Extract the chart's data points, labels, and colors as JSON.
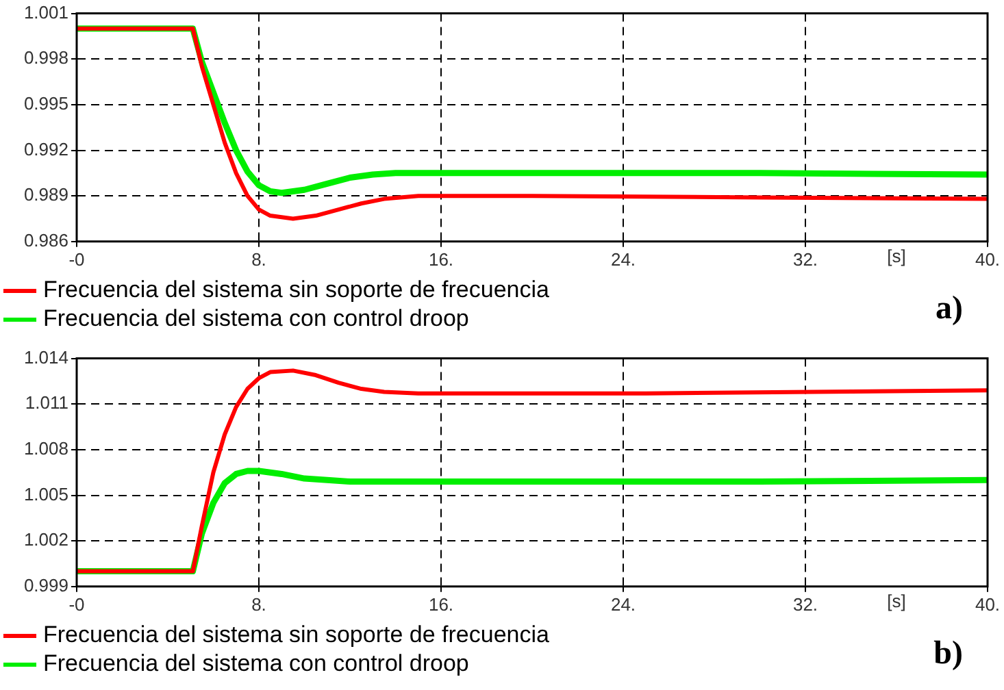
{
  "chart_data": [
    {
      "type": "line",
      "annotations": [
        "a)"
      ],
      "legend": "bottom",
      "grid": true,
      "marker": "none",
      "line_style": "solid",
      "xlabel": "[s]",
      "xlim": [
        0,
        40
      ],
      "xticks": [
        {
          "value": 0,
          "label": "-0"
        },
        {
          "value": 8,
          "label": "8."
        },
        {
          "value": 16,
          "label": "16."
        },
        {
          "value": 24,
          "label": "24."
        },
        {
          "value": 32,
          "label": "32."
        },
        {
          "value": 40,
          "label": "40."
        }
      ],
      "ylim": [
        0.986,
        1.001
      ],
      "yticks": [
        0.986,
        0.989,
        0.992,
        0.995,
        0.998,
        1.001
      ],
      "series": [
        {
          "name": "Frecuencia del sistema sin soporte de frecuencia",
          "color": "#ff0000",
          "x": [
            0,
            5.1,
            5.5,
            6,
            6.5,
            7,
            7.5,
            8,
            8.5,
            9.5,
            10.5,
            11.5,
            12.5,
            13.5,
            15,
            20,
            30,
            40
          ],
          "values": [
            1.0,
            1.0,
            0.9975,
            0.995,
            0.9925,
            0.9905,
            0.989,
            0.9881,
            0.9877,
            0.9875,
            0.9877,
            0.9881,
            0.9885,
            0.9888,
            0.989,
            0.989,
            0.9889,
            0.9888
          ]
        },
        {
          "name": "Frecuencia del sistema con control droop",
          "color": "#00ee00",
          "x": [
            0,
            5.1,
            5.5,
            6,
            6.5,
            7,
            7.5,
            8,
            8.5,
            9,
            10,
            11,
            12,
            13,
            14,
            20,
            30,
            40
          ],
          "values": [
            1.0,
            1.0,
            0.9978,
            0.9958,
            0.9938,
            0.992,
            0.9906,
            0.9897,
            0.9893,
            0.9892,
            0.9894,
            0.9898,
            0.9902,
            0.9904,
            0.9905,
            0.9905,
            0.9905,
            0.9904
          ]
        }
      ]
    },
    {
      "type": "line",
      "annotations": [
        "b)"
      ],
      "legend": "bottom",
      "grid": true,
      "marker": "none",
      "line_style": "solid",
      "xlabel": "[s]",
      "xlim": [
        0,
        40
      ],
      "xticks": [
        {
          "value": 0,
          "label": "-0"
        },
        {
          "value": 8,
          "label": "8."
        },
        {
          "value": 16,
          "label": "16."
        },
        {
          "value": 24,
          "label": "24."
        },
        {
          "value": 32,
          "label": "32."
        },
        {
          "value": 40,
          "label": "40."
        }
      ],
      "ylim": [
        0.999,
        1.014
      ],
      "yticks": [
        0.999,
        1.002,
        1.005,
        1.008,
        1.011,
        1.014
      ],
      "series": [
        {
          "name": "Frecuencia del sistema sin soporte de frecuencia",
          "color": "#ff0000",
          "x": [
            0,
            5.1,
            5.5,
            6,
            6.5,
            7,
            7.5,
            8,
            8.5,
            9.5,
            10.5,
            11.5,
            12.5,
            13.5,
            15,
            25,
            40
          ],
          "values": [
            1.0,
            1.0,
            1.003,
            1.0065,
            1.009,
            1.0108,
            1.012,
            1.0127,
            1.0131,
            1.0132,
            1.0129,
            1.0124,
            1.012,
            1.0118,
            1.0117,
            1.0117,
            1.0119
          ]
        },
        {
          "name": "Frecuencia del sistema con control droop",
          "color": "#00ee00",
          "x": [
            0,
            5.1,
            5.5,
            6,
            6.5,
            7,
            7.5,
            8,
            9,
            10,
            11,
            12,
            20,
            30,
            40
          ],
          "values": [
            1.0,
            1.0,
            1.0025,
            1.0045,
            1.0058,
            1.0064,
            1.0066,
            1.0066,
            1.0064,
            1.0061,
            1.006,
            1.0059,
            1.0059,
            1.0059,
            1.006
          ]
        }
      ]
    }
  ]
}
